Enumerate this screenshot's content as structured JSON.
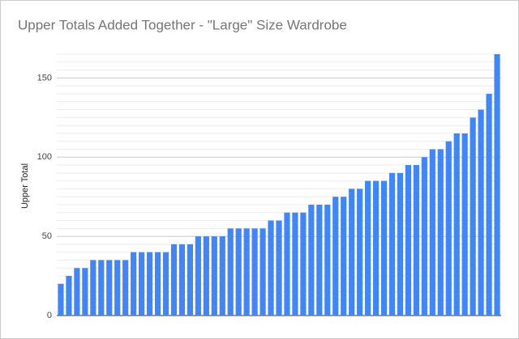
{
  "chart_data": {
    "type": "bar",
    "title": "Upper Totals Added Together - \"Large\" Size Wardrobe",
    "y_label": "Upper Total",
    "categories": [
      null,
      null,
      null,
      null,
      null,
      null,
      null,
      null,
      null,
      null,
      null,
      null,
      null,
      null,
      null,
      null,
      null,
      null,
      null,
      null,
      null,
      null,
      null,
      null,
      null,
      null,
      null,
      null,
      null,
      null,
      null,
      null,
      null,
      null,
      null,
      null,
      null,
      null,
      null,
      null,
      null,
      null,
      null,
      null,
      null,
      null,
      null,
      null,
      null,
      null,
      null,
      null,
      null,
      null,
      null
    ],
    "values": [
      20,
      25,
      30,
      30,
      35,
      35,
      35,
      35,
      35,
      40,
      40,
      40,
      40,
      40,
      45,
      45,
      45,
      50,
      50,
      50,
      50,
      55,
      55,
      55,
      55,
      55,
      60,
      60,
      65,
      65,
      65,
      70,
      70,
      70,
      75,
      75,
      80,
      80,
      85,
      85,
      85,
      90,
      90,
      95,
      95,
      100,
      105,
      105,
      110,
      115,
      115,
      125,
      130,
      140,
      165
    ],
    "color": "#4285f4",
    "ylim": [
      0,
      165
    ],
    "yticks": [
      0,
      50,
      100,
      150
    ],
    "grid": true
  }
}
